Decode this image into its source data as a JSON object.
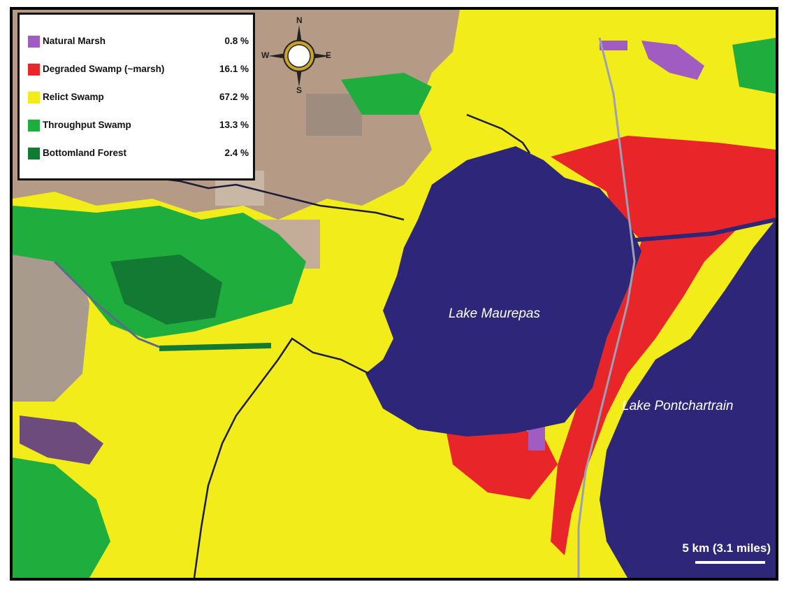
{
  "legend": {
    "items": [
      {
        "label": "Natural Marsh",
        "pct": "0.8 %",
        "color": "#a05cc0"
      },
      {
        "label": "Degraded Swamp (~marsh)",
        "pct": "16.1 %",
        "color": "#e8262a"
      },
      {
        "label": "Relict Swamp",
        "pct": "67.2 %",
        "color": "#f2ec1a"
      },
      {
        "label": "Throughput Swamp",
        "pct": "13.3 %",
        "color": "#1fae3e"
      },
      {
        "label": "Bottomland Forest",
        "pct": "2.4 %",
        "color": "#137a33"
      }
    ]
  },
  "labels": {
    "lake_maurepas": "Lake Maurepas",
    "lake_pontchartrain": "Lake Pontchartrain"
  },
  "compass": {
    "n": "N",
    "e": "E",
    "s": "S",
    "w": "W"
  },
  "scale": {
    "label": "5 km (3.1 miles)"
  },
  "colors": {
    "water": "#2e2779",
    "relict": "#f2ec1a",
    "degraded": "#e8262a",
    "throughput": "#1fae3e",
    "bottomland": "#137a33",
    "marsh": "#a05cc0",
    "agriculture": "#b59b85"
  }
}
